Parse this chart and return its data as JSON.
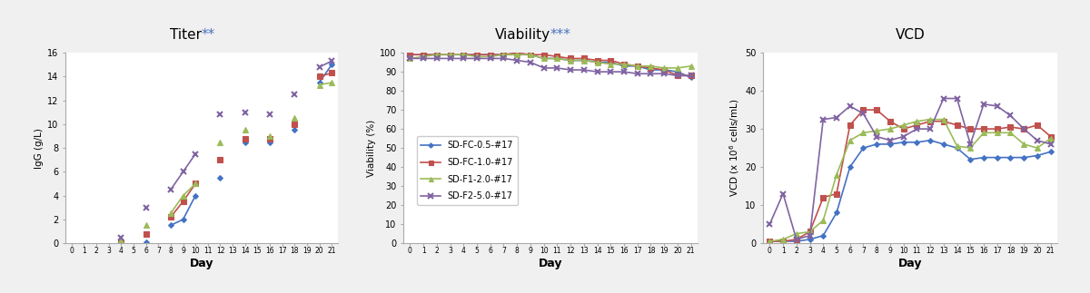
{
  "background_color": "#f0f0f0",
  "plot_bg": "#ffffff",
  "titer": {
    "title": "Titer",
    "title_stars": "**",
    "xlabel": "Day",
    "ylabel": "IgG (g/L)",
    "ylim": [
      0,
      16
    ],
    "yticks": [
      0,
      2,
      4,
      6,
      8,
      10,
      12,
      14,
      16
    ],
    "days": [
      0,
      1,
      2,
      3,
      4,
      5,
      6,
      7,
      8,
      9,
      10,
      11,
      12,
      13,
      14,
      15,
      16,
      17,
      18,
      19,
      20,
      21
    ],
    "series": {
      "SD-FC-0.5-#17": {
        "color": "#4472C4",
        "marker": "D",
        "values": [
          null,
          null,
          null,
          null,
          0.1,
          null,
          0.1,
          null,
          1.5,
          2.0,
          4.0,
          null,
          5.5,
          null,
          8.5,
          null,
          8.5,
          null,
          9.5,
          null,
          13.5,
          15.0
        ]
      },
      "SD-FC-1.0-#17": {
        "color": "#C0504D",
        "marker": "s",
        "values": [
          null,
          null,
          null,
          null,
          0.1,
          null,
          0.8,
          null,
          2.2,
          3.5,
          5.0,
          null,
          7.0,
          null,
          8.8,
          null,
          8.8,
          null,
          10.0,
          null,
          14.0,
          14.3
        ]
      },
      "SD-F1-2.0-#17": {
        "color": "#9BBB59",
        "marker": "^",
        "values": [
          null,
          null,
          null,
          null,
          0.2,
          null,
          1.5,
          null,
          2.5,
          4.0,
          5.0,
          null,
          8.5,
          null,
          9.5,
          null,
          9.0,
          null,
          10.5,
          null,
          13.3,
          13.5
        ]
      },
      "SD-F2-5.0-#17": {
        "color": "#8064A2",
        "marker": "x",
        "values": [
          null,
          null,
          null,
          null,
          0.5,
          null,
          3.0,
          null,
          4.5,
          6.0,
          7.5,
          null,
          10.8,
          null,
          11.0,
          null,
          10.8,
          null,
          12.5,
          null,
          14.8,
          15.3
        ]
      }
    }
  },
  "viability": {
    "title": "Viability",
    "title_stars": "***",
    "xlabel": "Day",
    "ylabel": "Viability (%)",
    "ylim": [
      0,
      100
    ],
    "yticks": [
      0,
      10,
      20,
      30,
      40,
      50,
      60,
      70,
      80,
      90,
      100
    ],
    "days": [
      0,
      1,
      2,
      3,
      4,
      5,
      6,
      7,
      8,
      9,
      10,
      11,
      12,
      13,
      14,
      15,
      16,
      17,
      18,
      19,
      20,
      21
    ],
    "series": {
      "SD-FC-0.5-#17": {
        "color": "#4472C4",
        "marker": "D",
        "values": [
          99,
          99,
          99,
          99,
          99,
          99,
          99,
          99,
          99,
          99,
          97,
          97,
          96,
          96,
          95,
          95,
          93,
          93,
          91,
          91,
          90,
          87
        ]
      },
      "SD-FC-1.0-#17": {
        "color": "#C0504D",
        "marker": "s",
        "values": [
          99,
          99,
          99,
          99,
          99,
          99,
          99,
          99,
          100,
          99,
          99,
          98,
          97,
          97,
          96,
          96,
          94,
          93,
          92,
          91,
          88,
          88
        ]
      },
      "SD-F1-2.0-#17": {
        "color": "#9BBB59",
        "marker": "^",
        "values": [
          97,
          98,
          99,
          99,
          99,
          98,
          98,
          99,
          99,
          99,
          97,
          97,
          96,
          96,
          95,
          94,
          94,
          93,
          93,
          92,
          92,
          93
        ]
      },
      "SD-F2-5.0-#17": {
        "color": "#8064A2",
        "marker": "x",
        "values": [
          97,
          97,
          97,
          97,
          97,
          97,
          97,
          97,
          96,
          95,
          92,
          92,
          91,
          91,
          90,
          90,
          90,
          89,
          89,
          89,
          88,
          88
        ]
      }
    }
  },
  "vcd": {
    "title": "VCD",
    "title_stars": "",
    "xlabel": "Day",
    "ylim": [
      0,
      50
    ],
    "yticks": [
      0,
      10,
      20,
      30,
      40,
      50
    ],
    "days": [
      0,
      1,
      2,
      3,
      4,
      5,
      6,
      7,
      8,
      9,
      10,
      11,
      12,
      13,
      14,
      15,
      16,
      17,
      18,
      19,
      20,
      21
    ],
    "series": {
      "SD-FC-0.5-#17": {
        "color": "#4472C4",
        "marker": "D",
        "values": [
          0.5,
          0.5,
          0.5,
          1.0,
          2.0,
          8.0,
          20.0,
          25.0,
          26.0,
          26.0,
          26.5,
          26.5,
          27.0,
          26.0,
          25.0,
          22.0,
          22.5,
          22.5,
          22.5,
          22.5,
          23.0,
          24.0
        ]
      },
      "SD-FC-1.0-#17": {
        "color": "#C0504D",
        "marker": "s",
        "values": [
          0.5,
          0.5,
          1.0,
          3.0,
          12.0,
          13.0,
          31.0,
          35.0,
          35.0,
          32.0,
          30.0,
          31.0,
          32.0,
          32.0,
          31.0,
          30.0,
          30.0,
          30.0,
          30.5,
          30.0,
          31.0,
          28.0
        ]
      },
      "SD-F1-2.0-#17": {
        "color": "#9BBB59",
        "marker": "^",
        "values": [
          0.5,
          1.0,
          2.5,
          3.0,
          6.0,
          18.0,
          27.0,
          29.0,
          29.5,
          30.0,
          31.0,
          32.0,
          32.5,
          32.5,
          25.5,
          25.0,
          29.0,
          29.0,
          29.0,
          26.0,
          25.0,
          27.5
        ]
      },
      "SD-F2-5.0-#17": {
        "color": "#8064A2",
        "marker": "x",
        "values": [
          5.0,
          13.0,
          1.0,
          2.0,
          32.5,
          33.0,
          36.0,
          34.0,
          28.0,
          27.0,
          28.0,
          30.0,
          30.0,
          38.0,
          38.0,
          26.0,
          36.5,
          36.0,
          33.5,
          30.0,
          27.0,
          26.0
        ]
      }
    }
  },
  "legend_labels": [
    "SD-FC-0.5-#17",
    "SD-FC-1.0-#17",
    "SD-F1-2.0-#17",
    "SD-F2-5.0-#17"
  ],
  "legend_colors": [
    "#4472C4",
    "#C0504D",
    "#9BBB59",
    "#8064A2"
  ],
  "legend_markers": [
    "D",
    "s",
    "^",
    "x"
  ]
}
